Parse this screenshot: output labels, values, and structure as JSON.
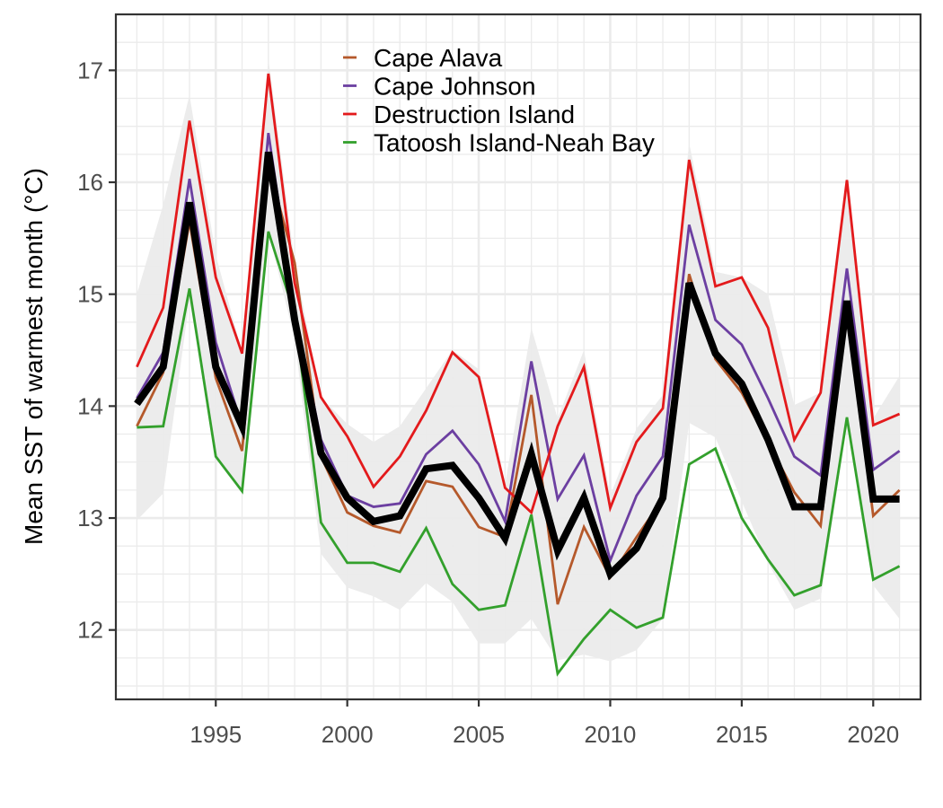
{
  "chart_data": {
    "type": "line",
    "title": "",
    "xlabel": "",
    "ylabel": "Mean SST of warmest month (°C)",
    "xlim": [
      1991.2,
      2021.8
    ],
    "ylim": [
      11.38,
      17.5
    ],
    "x_ticks": [
      1995,
      2000,
      2005,
      2010,
      2015,
      2020
    ],
    "y_ticks": [
      12,
      13,
      14,
      15,
      16,
      17
    ],
    "grid": true,
    "legend_position": "top-center",
    "x": [
      1992,
      1993,
      1994,
      1995,
      1996,
      1997,
      1998,
      1999,
      2000,
      2001,
      2002,
      2003,
      2004,
      2005,
      2006,
      2007,
      2008,
      2009,
      2010,
      2011,
      2012,
      2013,
      2014,
      2015,
      2016,
      2017,
      2018,
      2019,
      2020,
      2021
    ],
    "series": [
      {
        "name": "Cape Alava",
        "color": "#b5592b",
        "values": [
          13.82,
          14.3,
          15.65,
          14.25,
          13.6,
          16.15,
          15.28,
          13.55,
          13.05,
          12.93,
          12.87,
          13.33,
          13.28,
          12.92,
          12.83,
          14.1,
          12.23,
          12.92,
          12.47,
          12.83,
          13.17,
          15.18,
          14.42,
          14.12,
          13.68,
          13.23,
          12.93,
          14.93,
          13.02,
          13.25
        ]
      },
      {
        "name": "Cape Johnson",
        "color": "#6c3fa1",
        "values": [
          14.07,
          14.48,
          16.03,
          14.57,
          13.82,
          16.44,
          14.85,
          13.7,
          13.2,
          13.1,
          13.13,
          13.57,
          13.78,
          13.48,
          12.97,
          14.4,
          13.17,
          13.56,
          12.62,
          13.2,
          13.55,
          15.62,
          14.77,
          14.55,
          14.07,
          13.55,
          13.38,
          15.23,
          13.43,
          13.6
        ]
      },
      {
        "name": "Destruction Island",
        "color": "#e31a1c",
        "values": [
          14.35,
          14.88,
          16.55,
          15.15,
          14.47,
          16.97,
          15.1,
          14.08,
          13.73,
          13.28,
          13.55,
          13.96,
          14.48,
          14.26,
          13.27,
          13.05,
          13.82,
          14.35,
          13.09,
          13.68,
          13.98,
          16.2,
          15.07,
          15.15,
          14.7,
          13.7,
          14.12,
          16.02,
          13.83,
          13.93
        ]
      },
      {
        "name": "Tatoosh Island-Neah Bay",
        "color": "#33a02c",
        "values": [
          13.81,
          13.82,
          15.05,
          13.55,
          13.24,
          15.56,
          14.82,
          12.96,
          12.6,
          12.6,
          12.52,
          12.91,
          12.41,
          12.18,
          12.22,
          13.03,
          11.61,
          11.92,
          12.18,
          12.02,
          12.11,
          13.48,
          13.62,
          13.0,
          12.63,
          12.31,
          12.4,
          13.9,
          12.45,
          12.57
        ]
      },
      {
        "name": "",
        "color": "#000000",
        "values": [
          14.02,
          14.35,
          15.82,
          14.35,
          13.82,
          16.27,
          14.77,
          13.58,
          13.18,
          12.97,
          13.02,
          13.44,
          13.47,
          13.18,
          12.82,
          13.57,
          12.71,
          13.18,
          12.5,
          12.73,
          13.18,
          15.1,
          14.47,
          14.2,
          13.7,
          13.1,
          13.1,
          14.94,
          13.17,
          13.17
        ]
      }
    ],
    "band": {
      "color": "#ebebeb",
      "upper": [
        15.0,
        15.8,
        16.78,
        15.35,
        14.48,
        17.1,
        15.28,
        14.08,
        13.84,
        13.68,
        13.82,
        14.16,
        14.5,
        14.33,
        13.3,
        14.7,
        13.89,
        14.5,
        13.2,
        13.8,
        14.1,
        16.35,
        15.2,
        15.15,
        15.0,
        14.01,
        14.12,
        16.02,
        13.89,
        14.27
      ],
      "lower": [
        12.98,
        13.22,
        14.95,
        13.55,
        13.24,
        15.56,
        14.6,
        12.68,
        12.38,
        12.3,
        12.18,
        12.42,
        12.25,
        11.88,
        11.88,
        12.1,
        11.73,
        11.78,
        11.72,
        11.82,
        12.1,
        13.85,
        13.72,
        13.15,
        12.6,
        12.18,
        12.28,
        13.85,
        12.4,
        12.1
      ]
    }
  }
}
